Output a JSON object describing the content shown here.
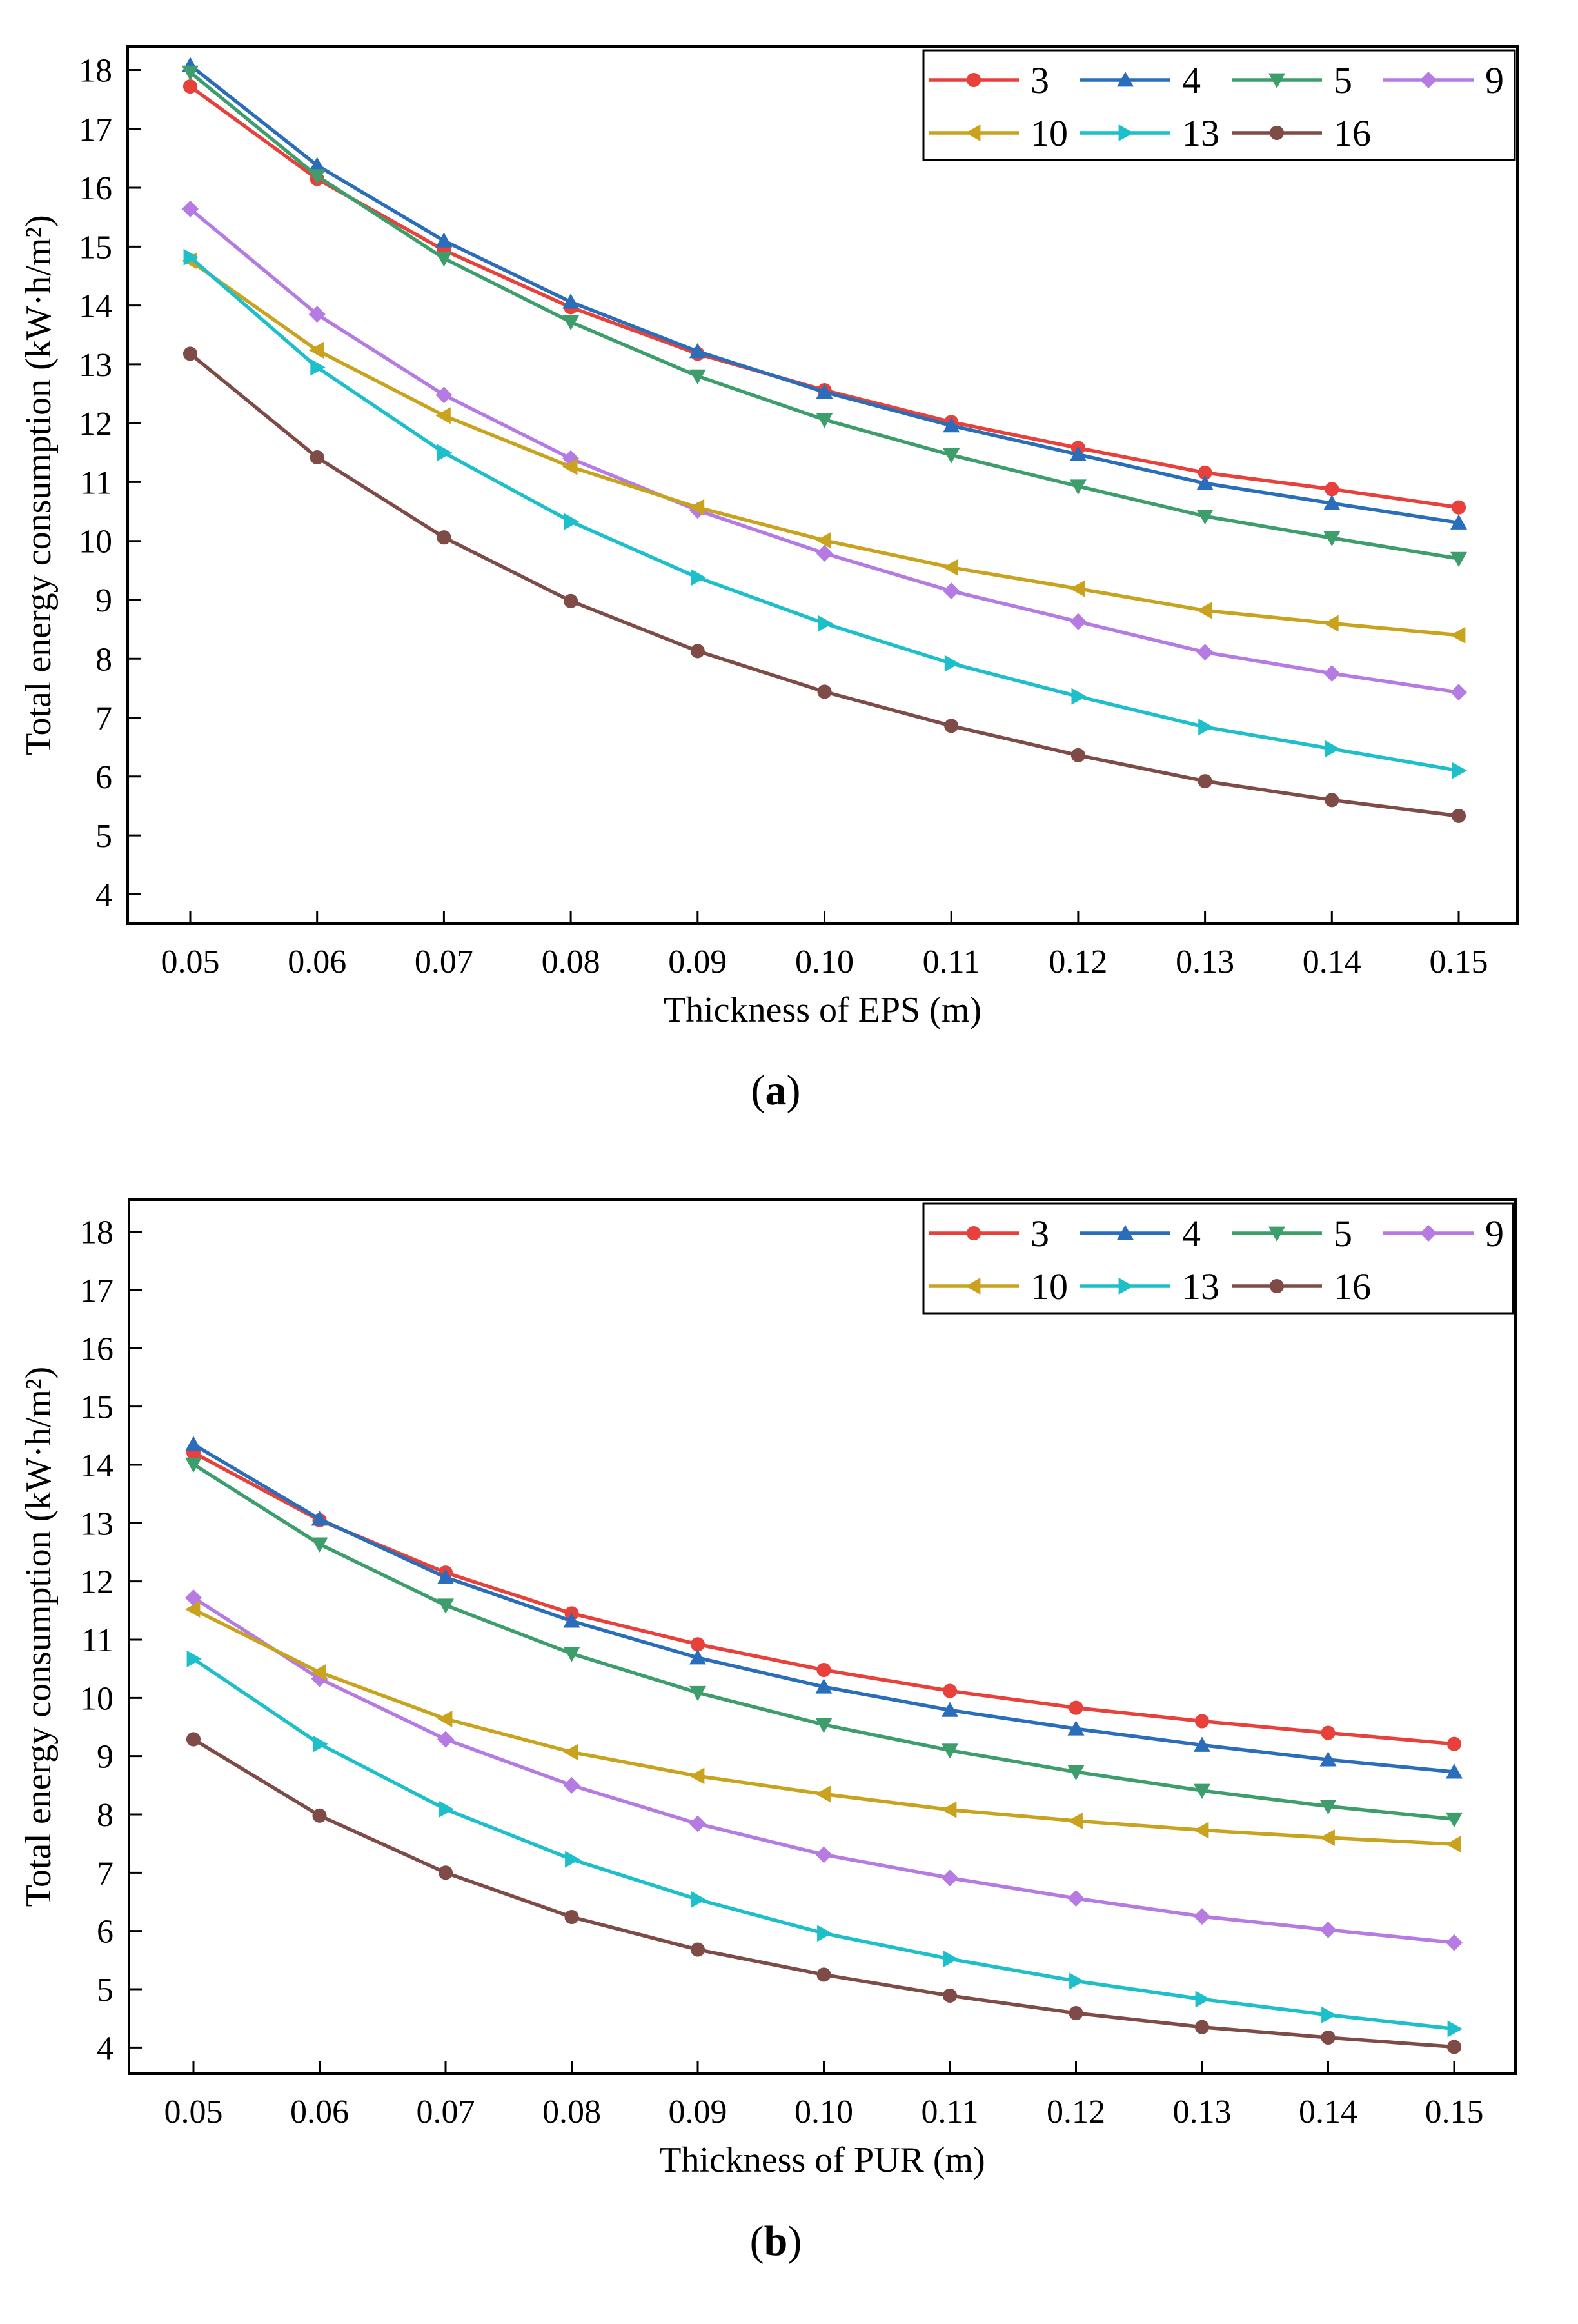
{
  "chart_data": [
    {
      "type": "line",
      "panel_label": "a",
      "caption": {
        "open": "(",
        "label": "a",
        "close": ")"
      },
      "title": "",
      "xlabel": "Thickness of EPS (m)",
      "ylabel": "Total energy consumption (kW·h/m²)",
      "x": [
        0.05,
        0.06,
        0.07,
        0.08,
        0.09,
        0.1,
        0.11,
        0.12,
        0.13,
        0.14,
        0.15
      ],
      "x_tick_labels": [
        "0.05",
        "0.06",
        "0.07",
        "0.08",
        "0.09",
        "0.10",
        "0.11",
        "0.12",
        "0.13",
        "0.14",
        "0.15"
      ],
      "ylim": [
        3.5,
        18.4
      ],
      "y_ticks": [
        4,
        5,
        6,
        7,
        8,
        9,
        10,
        11,
        12,
        13,
        14,
        15,
        16,
        17,
        18
      ],
      "y_tick_labels": [
        "4",
        "5",
        "6",
        "7",
        "8",
        "9",
        "10",
        "11",
        "12",
        "13",
        "14",
        "15",
        "16",
        "17",
        "18"
      ],
      "grid": false,
      "legend_position": "top-right",
      "series": [
        {
          "name": "3",
          "color": "#e8403a",
          "marker": "circle",
          "values": [
            17.72,
            16.15,
            14.94,
            13.97,
            13.18,
            12.56,
            12.02,
            11.58,
            11.16,
            10.88,
            10.57
          ]
        },
        {
          "name": "4",
          "color": "#2a6ebb",
          "marker": "triangle-up",
          "values": [
            18.08,
            16.38,
            15.1,
            14.06,
            13.22,
            12.53,
            11.96,
            11.47,
            10.98,
            10.64,
            10.31
          ]
        },
        {
          "name": "5",
          "color": "#3d9e6c",
          "marker": "triangle-down",
          "values": [
            17.96,
            16.2,
            14.8,
            13.72,
            12.8,
            12.06,
            11.46,
            10.93,
            10.42,
            10.05,
            9.7
          ]
        },
        {
          "name": "9",
          "color": "#b57be3",
          "marker": "diamond",
          "values": [
            15.64,
            13.85,
            12.48,
            11.4,
            10.52,
            9.79,
            9.15,
            8.63,
            8.11,
            7.75,
            7.43
          ]
        },
        {
          "name": "10",
          "color": "#c9a21e",
          "marker": "triangle-left",
          "values": [
            14.76,
            13.24,
            12.13,
            11.26,
            10.57,
            10.01,
            9.55,
            9.19,
            8.82,
            8.6,
            8.4
          ]
        },
        {
          "name": "13",
          "color": "#1dbfca",
          "marker": "triangle-right",
          "values": [
            14.82,
            12.95,
            11.5,
            10.33,
            9.38,
            8.6,
            7.92,
            7.36,
            6.84,
            6.47,
            6.1
          ]
        },
        {
          "name": "16",
          "color": "#7e4b46",
          "marker": "circle",
          "values": [
            13.18,
            11.42,
            10.06,
            8.98,
            8.13,
            7.44,
            6.86,
            6.36,
            5.92,
            5.6,
            5.33
          ]
        }
      ]
    },
    {
      "type": "line",
      "panel_label": "b",
      "caption": {
        "open": "(",
        "label": "b",
        "close": ")"
      },
      "title": "",
      "xlabel": "Thickness of PUR (m)",
      "ylabel": "Total energy consumption (kW·h/m²)",
      "x": [
        0.05,
        0.06,
        0.07,
        0.08,
        0.09,
        0.1,
        0.11,
        0.12,
        0.13,
        0.14,
        0.15
      ],
      "x_tick_labels": [
        "0.05",
        "0.06",
        "0.07",
        "0.08",
        "0.09",
        "0.10",
        "0.11",
        "0.12",
        "0.13",
        "0.14",
        "0.15"
      ],
      "ylim": [
        3.55,
        18.55
      ],
      "y_ticks": [
        4,
        5,
        6,
        7,
        8,
        9,
        10,
        11,
        12,
        13,
        14,
        15,
        16,
        17,
        18
      ],
      "y_tick_labels": [
        "4",
        "5",
        "6",
        "7",
        "8",
        "9",
        "10",
        "11",
        "12",
        "13",
        "14",
        "15",
        "16",
        "17",
        "18"
      ],
      "grid": false,
      "legend_position": "top-right",
      "series": [
        {
          "name": "3",
          "color": "#e8403a",
          "marker": "circle",
          "values": [
            14.21,
            13.05,
            12.15,
            11.45,
            10.92,
            10.48,
            10.12,
            9.83,
            9.6,
            9.4,
            9.21
          ]
        },
        {
          "name": "4",
          "color": "#2a6ebb",
          "marker": "triangle-up",
          "values": [
            14.35,
            13.07,
            12.07,
            11.32,
            10.69,
            10.19,
            9.79,
            9.47,
            9.19,
            8.94,
            8.73
          ]
        },
        {
          "name": "5",
          "color": "#3d9e6c",
          "marker": "triangle-down",
          "values": [
            14.01,
            12.64,
            11.59,
            10.76,
            10.09,
            9.54,
            9.1,
            8.73,
            8.41,
            8.14,
            7.92
          ]
        },
        {
          "name": "9",
          "color": "#b57be3",
          "marker": "diamond",
          "values": [
            11.72,
            10.33,
            9.29,
            8.5,
            7.84,
            7.31,
            6.91,
            6.56,
            6.25,
            6.02,
            5.8
          ]
        },
        {
          "name": "10",
          "color": "#c9a21e",
          "marker": "triangle-left",
          "values": [
            11.52,
            10.44,
            9.64,
            9.07,
            8.66,
            8.35,
            8.08,
            7.89,
            7.73,
            7.6,
            7.49
          ]
        },
        {
          "name": "13",
          "color": "#1dbfca",
          "marker": "triangle-right",
          "values": [
            10.67,
            9.21,
            8.09,
            7.23,
            6.54,
            5.96,
            5.52,
            5.14,
            4.83,
            4.56,
            4.32
          ]
        },
        {
          "name": "16",
          "color": "#7e4b46",
          "marker": "circle",
          "values": [
            9.29,
            7.98,
            7.0,
            6.24,
            5.68,
            5.25,
            4.89,
            4.59,
            4.35,
            4.17,
            4.01
          ]
        }
      ]
    }
  ]
}
